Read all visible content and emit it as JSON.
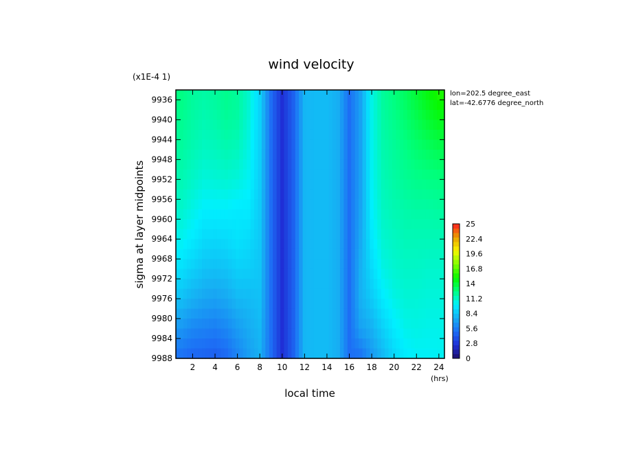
{
  "chart_data": {
    "type": "heatmap",
    "title": "wind velocity",
    "scale_note": "(x1E-4 1)",
    "xlabel": "local time",
    "x_unit": "(hrs)",
    "ylabel": "sigma at layer midpoints",
    "annotations": [
      "lon=202.5 degree_east",
      "lat=-42.6776 degree_north"
    ],
    "xlim": [
      0.5,
      24.5
    ],
    "ylim": [
      9988,
      9934
    ],
    "xticks": [
      2,
      4,
      6,
      8,
      10,
      12,
      14,
      16,
      18,
      20,
      22,
      24
    ],
    "yticks": [
      9936,
      9940,
      9944,
      9948,
      9952,
      9956,
      9960,
      9964,
      9968,
      9972,
      9976,
      9980,
      9984,
      9988
    ],
    "x": [
      1,
      2,
      3,
      4,
      5,
      6,
      7,
      8,
      9,
      10,
      11,
      12,
      13,
      14,
      15,
      16,
      17,
      18,
      19,
      20,
      21,
      22,
      23,
      24
    ],
    "y": [
      9934,
      9940,
      9946,
      9952,
      9958,
      9964,
      9970,
      9976,
      9982,
      9988
    ],
    "z": [
      [
        12.5,
        12.0,
        11.8,
        12.0,
        12.3,
        12.0,
        11.0,
        9.0,
        5.0,
        2.5,
        4.5,
        7.8,
        8.0,
        8.0,
        7.5,
        5.0,
        7.0,
        10.5,
        12.0,
        12.6,
        13.2,
        14.0,
        14.8,
        15.5
      ],
      [
        12.2,
        11.8,
        11.5,
        11.7,
        12.0,
        11.8,
        10.8,
        8.9,
        5.0,
        2.5,
        4.5,
        7.8,
        8.0,
        8.0,
        7.5,
        5.0,
        7.0,
        10.4,
        11.8,
        12.3,
        12.8,
        13.4,
        14.0,
        14.5
      ],
      [
        11.9,
        11.5,
        11.2,
        11.3,
        11.5,
        11.3,
        10.5,
        8.8,
        5.0,
        2.5,
        4.5,
        7.8,
        8.0,
        8.0,
        7.5,
        5.0,
        7.0,
        10.3,
        11.6,
        12.0,
        12.4,
        12.8,
        13.1,
        13.4
      ],
      [
        11.5,
        11.1,
        10.7,
        10.8,
        10.9,
        10.7,
        10.2,
        8.7,
        5.0,
        2.5,
        4.5,
        7.8,
        8.0,
        8.0,
        7.5,
        5.0,
        7.0,
        10.2,
        11.4,
        11.8,
        12.1,
        12.3,
        12.4,
        12.5
      ],
      [
        11.0,
        10.5,
        10.0,
        10.0,
        10.0,
        9.8,
        9.8,
        8.6,
        5.0,
        2.5,
        4.5,
        7.8,
        8.0,
        8.0,
        7.5,
        5.0,
        7.1,
        10.0,
        11.2,
        11.5,
        11.7,
        11.8,
        11.8,
        11.9
      ],
      [
        10.3,
        9.8,
        9.2,
        9.1,
        9.2,
        9.5,
        9.2,
        8.5,
        5.0,
        2.5,
        4.5,
        7.8,
        8.0,
        8.0,
        7.5,
        5.0,
        7.3,
        9.7,
        10.9,
        11.2,
        11.4,
        11.4,
        11.4,
        11.4
      ],
      [
        9.4,
        8.8,
        8.3,
        8.2,
        8.3,
        8.8,
        8.7,
        8.4,
        5.0,
        2.5,
        4.5,
        7.8,
        8.0,
        8.0,
        7.5,
        5.0,
        7.6,
        9.2,
        10.5,
        10.9,
        11.1,
        11.1,
        11.0,
        11.0
      ],
      [
        8.2,
        7.6,
        7.2,
        7.0,
        7.3,
        7.9,
        8.0,
        8.2,
        5.0,
        2.5,
        4.5,
        7.8,
        8.0,
        8.0,
        7.5,
        5.0,
        7.6,
        8.6,
        9.8,
        10.5,
        10.8,
        10.8,
        10.7,
        10.7
      ],
      [
        6.6,
        6.0,
        5.8,
        5.6,
        6.0,
        6.8,
        7.4,
        7.9,
        5.0,
        2.5,
        4.5,
        7.8,
        8.0,
        8.0,
        7.5,
        5.0,
        7.0,
        7.6,
        8.8,
        9.8,
        10.4,
        10.5,
        10.4,
        10.4
      ],
      [
        5.0,
        4.6,
        4.5,
        4.3,
        4.7,
        5.8,
        6.8,
        7.6,
        5.0,
        2.5,
        4.5,
        7.8,
        8.0,
        8.0,
        7.5,
        5.0,
        5.0,
        6.6,
        7.8,
        9.0,
        9.8,
        10.1,
        10.1,
        10.2
      ]
    ],
    "colorbar": {
      "min": 0,
      "max": 25,
      "tick_labels": [
        "0",
        "2.8",
        "5.6",
        "8.4",
        "11.2",
        "14",
        "16.8",
        "19.6",
        "22.4",
        "25"
      ]
    },
    "colors": [
      "#1e0f6a",
      "#1f2fd6",
      "#1d6ef5",
      "#17aef3",
      "#00f0ff",
      "#00ff80",
      "#08f800",
      "#80ff00",
      "#f8f800",
      "#e8a000",
      "#ff2020"
    ]
  }
}
